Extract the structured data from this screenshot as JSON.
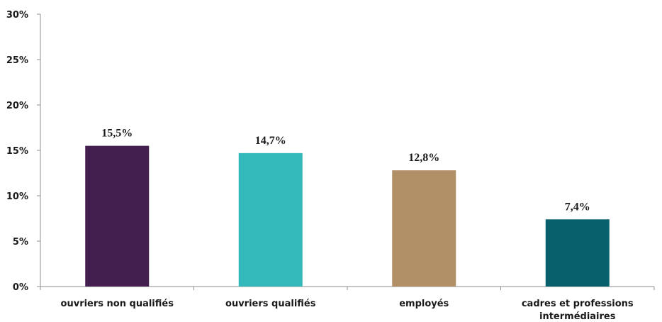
{
  "chart_data": {
    "type": "bar",
    "title": "",
    "xlabel": "",
    "ylabel": "",
    "categories": [
      [
        "ouvriers non qualifiés"
      ],
      [
        "ouvriers qualifiés"
      ],
      [
        "employés"
      ],
      [
        "cadres et professions",
        "intermédiaires"
      ]
    ],
    "values": [
      15.5,
      14.7,
      12.8,
      7.4
    ],
    "value_labels": [
      "15,5%",
      "14,7%",
      "12,8%",
      "7,4%"
    ],
    "colors": [
      "#431f4f",
      "#33b9b9",
      "#b18f67",
      "#07606b"
    ],
    "ylim": [
      0,
      30
    ],
    "yticks": [
      0,
      5,
      10,
      15,
      20,
      25,
      30
    ],
    "ytick_labels": [
      "0%",
      "5%",
      "10%",
      "15%",
      "20%",
      "25%",
      "30%"
    ],
    "grid": false,
    "legend": "none"
  }
}
